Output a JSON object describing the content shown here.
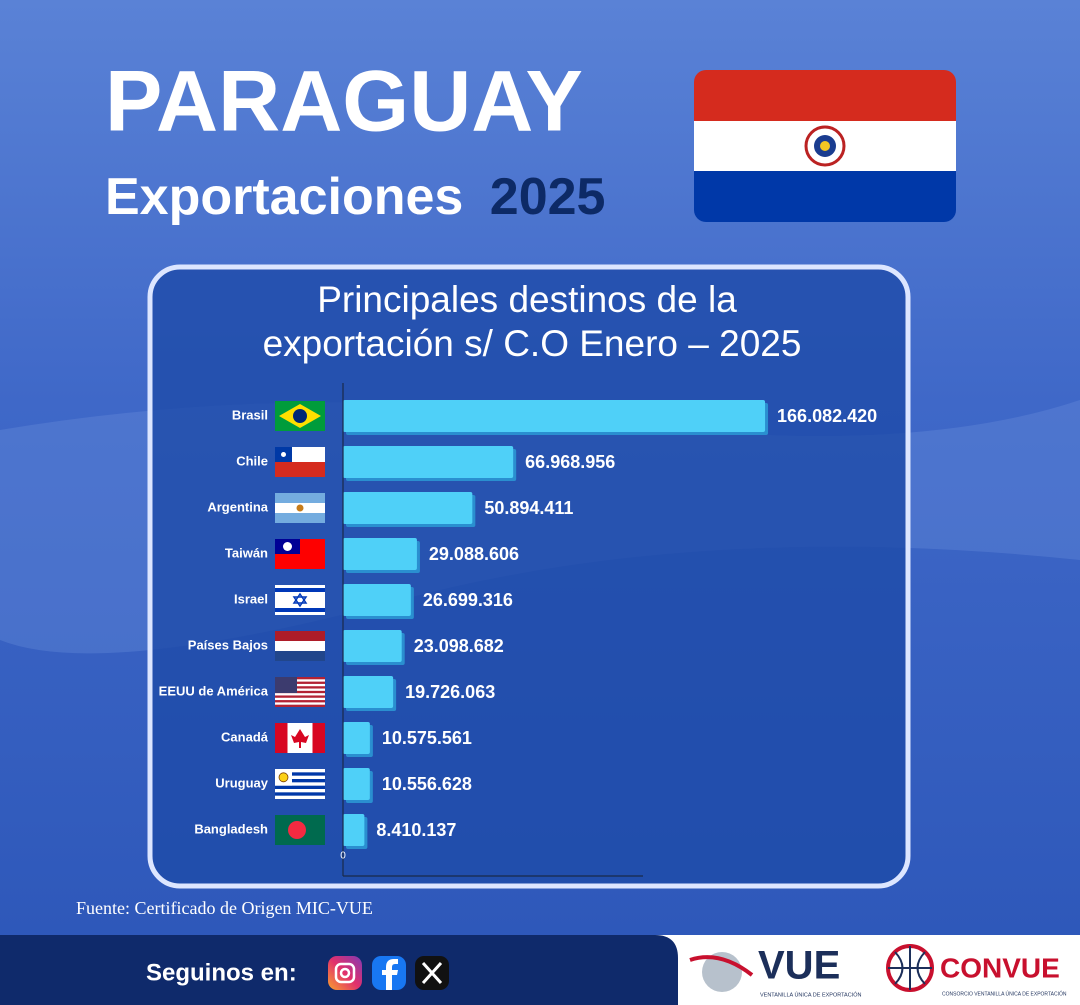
{
  "header": {
    "title": "PARAGUAY",
    "subtitle": "Exportaciones",
    "year": "2025"
  },
  "chart_data": {
    "type": "bar",
    "orientation": "horizontal",
    "title_lines": [
      "Principales destinos de la",
      "exportación s/ C.O Enero – 2025"
    ],
    "categories": [
      "Brasil",
      "Chile",
      "Argentina",
      "Taiwán",
      "Israel",
      "Países Bajos",
      "EEUU de América",
      "Canadá",
      "Uruguay",
      "Bangladesh"
    ],
    "values": [
      166082420,
      66968956,
      50894411,
      29088606,
      26699316,
      23098682,
      19726063,
      10575561,
      10556628,
      8410137
    ],
    "value_labels": [
      "166.082.420",
      "66.968.956",
      "50.894.411",
      "29.088.606",
      "26.699.316",
      "23.098.682",
      "19.726.063",
      "10.575.561",
      "10.556.628",
      "8.410.137"
    ],
    "color": "#4fd0f8",
    "xlim": [
      0,
      170000000
    ],
    "xticks": [
      0
    ]
  },
  "source": "Fuente: Certificado de Origen MIC-VUE",
  "footer": {
    "follow": "Seguinos en:",
    "logo1": "VUE",
    "logo1_sub": "VENTANILLA ÚNICA DE EXPORTACIÓN",
    "logo2": "CONVUE",
    "logo2_sub": "CONSORCIO VENTANILLA ÚNICA DE EXPORTACIÓN"
  }
}
